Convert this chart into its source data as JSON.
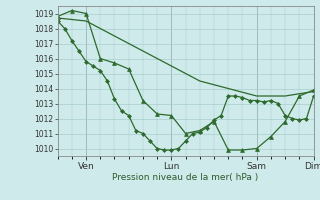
{
  "xlabel": "Pression niveau de la mer( hPa )",
  "background_color": "#cfeaea",
  "grid_color": "#a8cccc",
  "line_color": "#2d6a2d",
  "ylim": [
    1009.5,
    1019.5
  ],
  "yticks": [
    1010,
    1011,
    1012,
    1013,
    1014,
    1015,
    1016,
    1017,
    1018,
    1019
  ],
  "xlim": [
    0,
    216
  ],
  "xtick_positions": [
    24,
    96,
    168,
    216
  ],
  "xtick_labels": [
    "Ven",
    "Lun",
    "Sam",
    "Dim"
  ],
  "vline_positions": [
    24,
    96,
    168,
    216
  ],
  "series": [
    {
      "x": [
        0,
        24,
        48,
        72,
        96,
        120,
        144,
        168,
        192,
        216
      ],
      "y": [
        1018.7,
        1018.5,
        1017.5,
        1016.5,
        1015.5,
        1014.5,
        1014.0,
        1013.5,
        1013.5,
        1013.8
      ],
      "marker": null,
      "linewidth": 0.9
    },
    {
      "x": [
        0,
        6,
        12,
        18,
        24,
        30,
        36,
        42,
        48,
        54,
        60,
        66,
        72,
        78,
        84,
        90,
        96,
        102,
        108,
        114,
        120,
        126,
        132,
        138,
        144,
        150,
        156,
        162,
        168,
        174,
        180,
        186,
        192,
        198,
        204,
        210,
        216
      ],
      "y": [
        1018.5,
        1018.0,
        1017.2,
        1016.5,
        1015.8,
        1015.5,
        1015.2,
        1014.5,
        1013.3,
        1012.5,
        1012.2,
        1011.2,
        1011.0,
        1010.5,
        1010.0,
        1009.9,
        1009.9,
        1010.0,
        1010.5,
        1011.0,
        1011.1,
        1011.4,
        1011.9,
        1012.2,
        1013.5,
        1013.5,
        1013.4,
        1013.2,
        1013.2,
        1013.1,
        1013.2,
        1013.0,
        1012.2,
        1012.0,
        1011.9,
        1012.0,
        1013.5
      ],
      "marker": "D",
      "markersize": 2.0,
      "linewidth": 0.9
    },
    {
      "x": [
        0,
        12,
        24,
        36,
        48,
        60,
        72,
        84,
        96,
        108,
        120,
        132,
        144,
        156,
        168,
        180,
        192,
        204,
        216
      ],
      "y": [
        1018.8,
        1019.2,
        1019.0,
        1016.0,
        1015.7,
        1015.3,
        1013.2,
        1012.3,
        1012.2,
        1011.0,
        1011.2,
        1011.8,
        1009.9,
        1009.9,
        1010.0,
        1010.8,
        1011.8,
        1013.5,
        1013.9
      ],
      "marker": "^",
      "markersize": 2.8,
      "linewidth": 0.9
    }
  ]
}
